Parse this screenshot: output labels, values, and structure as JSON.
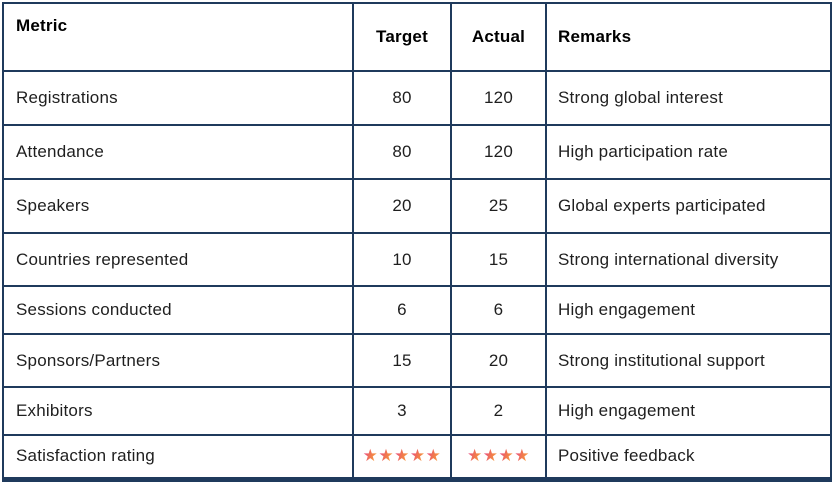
{
  "chart_data": {
    "type": "table",
    "columns": [
      "Metric",
      "Target",
      "Actual",
      "Remarks"
    ],
    "rows": [
      [
        "Registrations",
        "80",
        "120",
        "Strong global interest"
      ],
      [
        "Attendance",
        "80",
        "120",
        "High participation rate"
      ],
      [
        "Speakers",
        "20",
        "25",
        "Global experts participated"
      ],
      [
        "Countries represented",
        "10",
        "15",
        "Strong international diversity"
      ],
      [
        "Sessions conducted",
        "6",
        "6",
        "High engagement"
      ],
      [
        "Sponsors/Partners",
        "15",
        "20",
        "Strong institutional support"
      ],
      [
        "Exhibitors",
        "3",
        "2",
        "High engagement"
      ],
      [
        "Satisfaction rating",
        "★★★★★",
        "★★★★",
        "Positive feedback"
      ]
    ]
  },
  "table": {
    "headers": {
      "metric": "Metric",
      "target": "Target",
      "actual": "Actual",
      "remarks": "Remarks"
    },
    "rows": [
      {
        "metric": "Registrations",
        "target": "80",
        "actual": "120",
        "remarks": "Strong global interest"
      },
      {
        "metric": "Attendance",
        "target": "80",
        "actual": "120",
        "remarks": "High participation rate"
      },
      {
        "metric": "Speakers",
        "target": "20",
        "actual": "25",
        "remarks": "Global experts participated"
      },
      {
        "metric": "Countries represented",
        "target": "10",
        "actual": "15",
        "remarks": "Strong international diversity"
      },
      {
        "metric": "Sessions conducted",
        "target": "6",
        "actual": "6",
        "remarks": "High engagement"
      },
      {
        "metric": "Sponsors/Partners",
        "target": "15",
        "actual": "20",
        "remarks": "Strong institutional support"
      },
      {
        "metric": "Exhibitors",
        "target": "3",
        "actual": "2",
        "remarks": "High engagement"
      },
      {
        "metric": "Satisfaction rating",
        "target_stars": 5,
        "actual_stars": 4,
        "remarks": "Positive feedback"
      }
    ],
    "star_icon": "★"
  },
  "colors": {
    "border": "#1f3a5c",
    "header_text": "#000000",
    "body_text": "#1f1f1f",
    "background": "#ffffff",
    "star_pink": "#e94e86",
    "star_orange": "#f9a43c"
  }
}
